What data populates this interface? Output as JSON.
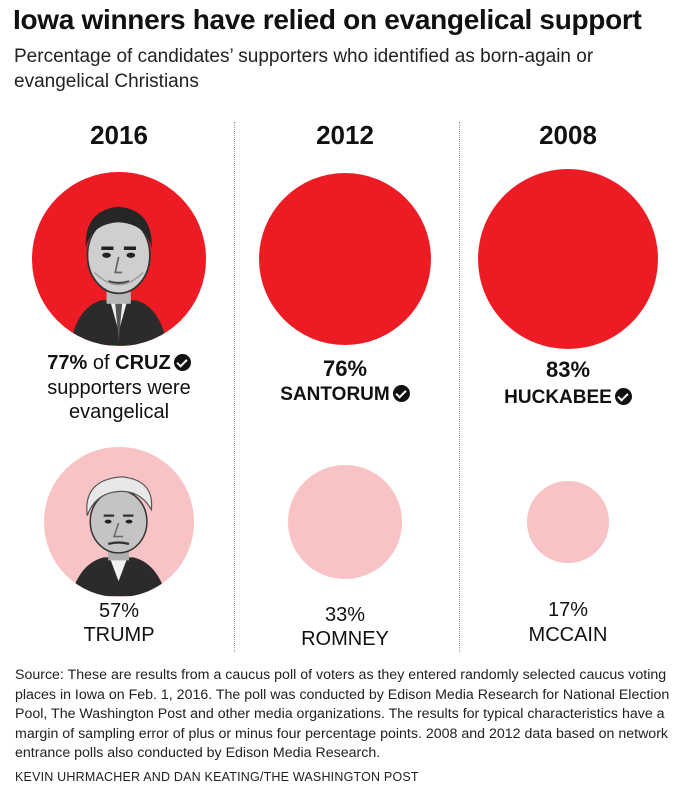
{
  "title": "Iowa winners have relied on evangelical support",
  "subtitle": "Percentage of candidates’ supporters who identified as born-again or evangelical Christians",
  "chart_data": {
    "type": "bubble",
    "title": "Iowa winners have relied on evangelical support",
    "subtitle": "Percentage of candidates’ supporters who identified as born-again or evangelical Christians",
    "unit": "% of supporters evangelical",
    "columns": [
      {
        "year": "2016",
        "winner": {
          "name": "CRUZ",
          "percent": 77,
          "pct_label": "77%",
          "label_extra": "of",
          "label_rest_1": "supporters were",
          "label_rest_2": "evangelical",
          "portrait": "cruz-portrait"
        },
        "runner_up": {
          "name": "TRUMP",
          "percent": 57,
          "pct_label": "57%",
          "portrait": "trump-portrait"
        }
      },
      {
        "year": "2012",
        "winner": {
          "name": "SANTORUM",
          "percent": 76,
          "pct_label": "76%"
        },
        "runner_up": {
          "name": "ROMNEY",
          "percent": 33,
          "pct_label": "33%"
        }
      },
      {
        "year": "2008",
        "winner": {
          "name": "HUCKABEE",
          "percent": 83,
          "pct_label": "83%"
        },
        "runner_up": {
          "name": "MCCAIN",
          "percent": 17,
          "pct_label": "17%"
        }
      }
    ]
  },
  "colors": {
    "winner": "#ed1c24",
    "runner_up": "#f7c3c5"
  },
  "icons": {
    "winner_mark": "checkmark-circle-icon"
  },
  "source": "Source: These are results from a caucus poll of voters as they entered randomly selected caucus voting places in Iowa on Feb. 1, 2016. The poll was conducted by Edison Media Research for National Election Pool, The Washington Post and other media organizations. The results for typical characteristics have a margin of sampling error of plus or minus four percentage points. 2008 and 2012 data based on network entrance polls also conducted by Edison Media Research.",
  "credit": "KEVIN UHRMACHER AND DAN KEATING/THE WASHINGTON POST"
}
